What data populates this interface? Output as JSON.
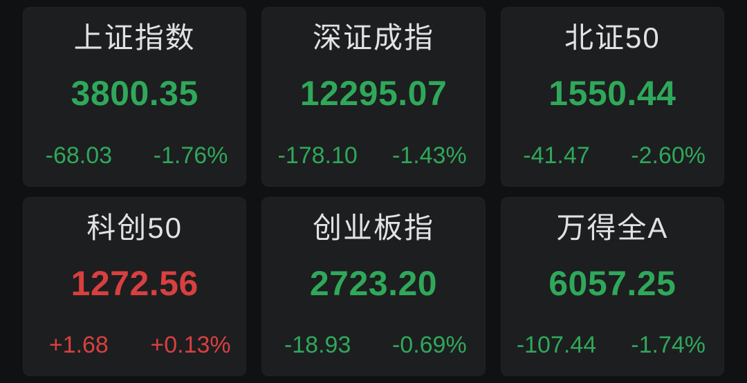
{
  "page": {
    "background": "#101113",
    "card_background": "#1d1e20"
  },
  "colors": {
    "title": "#e2e2e4",
    "up_red": "#d84040",
    "down_green": "#2fa85a"
  },
  "cards": [
    {
      "name": "上证指数",
      "value": "3800.35",
      "change": "-68.03",
      "change_pct": "-1.76%",
      "direction": "down"
    },
    {
      "name": "深证成指",
      "value": "12295.07",
      "change": "-178.10",
      "change_pct": "-1.43%",
      "direction": "down"
    },
    {
      "name": "北证50",
      "value": "1550.44",
      "change": "-41.47",
      "change_pct": "-2.60%",
      "direction": "down"
    },
    {
      "name": "科创50",
      "value": "1272.56",
      "change": "+1.68",
      "change_pct": "+0.13%",
      "direction": "up"
    },
    {
      "name": "创业板指",
      "value": "2723.20",
      "change": "-18.93",
      "change_pct": "-0.69%",
      "direction": "down"
    },
    {
      "name": "万得全A",
      "value": "6057.25",
      "change": "-107.44",
      "change_pct": "-1.74%",
      "direction": "down"
    }
  ]
}
